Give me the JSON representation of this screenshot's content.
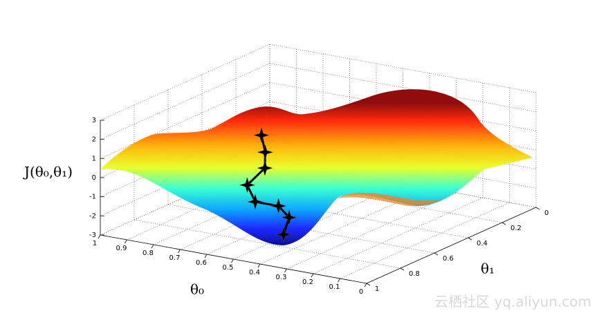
{
  "chart_data": {
    "type": "line3d",
    "zlabel": "J(θ₀,θ₁)",
    "xlabel": "θ₀",
    "ylabel": "θ₁",
    "xlim": [
      0,
      1
    ],
    "ylim": [
      0,
      1
    ],
    "zlim": [
      -3,
      3
    ],
    "xticks": [
      1,
      0.9,
      0.8,
      0.7,
      0.6,
      0.5,
      0.4,
      0.3,
      0.2,
      0.1,
      0
    ],
    "yticks": [
      0,
      0.2,
      0.4,
      0.6,
      0.8,
      1
    ],
    "zticks": [
      3,
      2,
      1,
      0,
      -1,
      -2,
      -3
    ],
    "grid": true,
    "series": [
      {
        "color": "#000000",
        "x": [
          0.56,
          0.54,
          0.56,
          0.62,
          0.59,
          0.56,
          0.52,
          0.49
        ],
        "y": [
          0.74,
          0.75,
          0.72,
          0.73,
          0.73,
          0.64,
          0.64,
          0.72
        ],
        "z": [
          2.3,
          1.5,
          0.5,
          -0.5,
          -1.3,
          -1.8,
          -2.3,
          -2.8
        ]
      }
    ],
    "watermark": "云栖社区 yq.aliyun.com"
  }
}
